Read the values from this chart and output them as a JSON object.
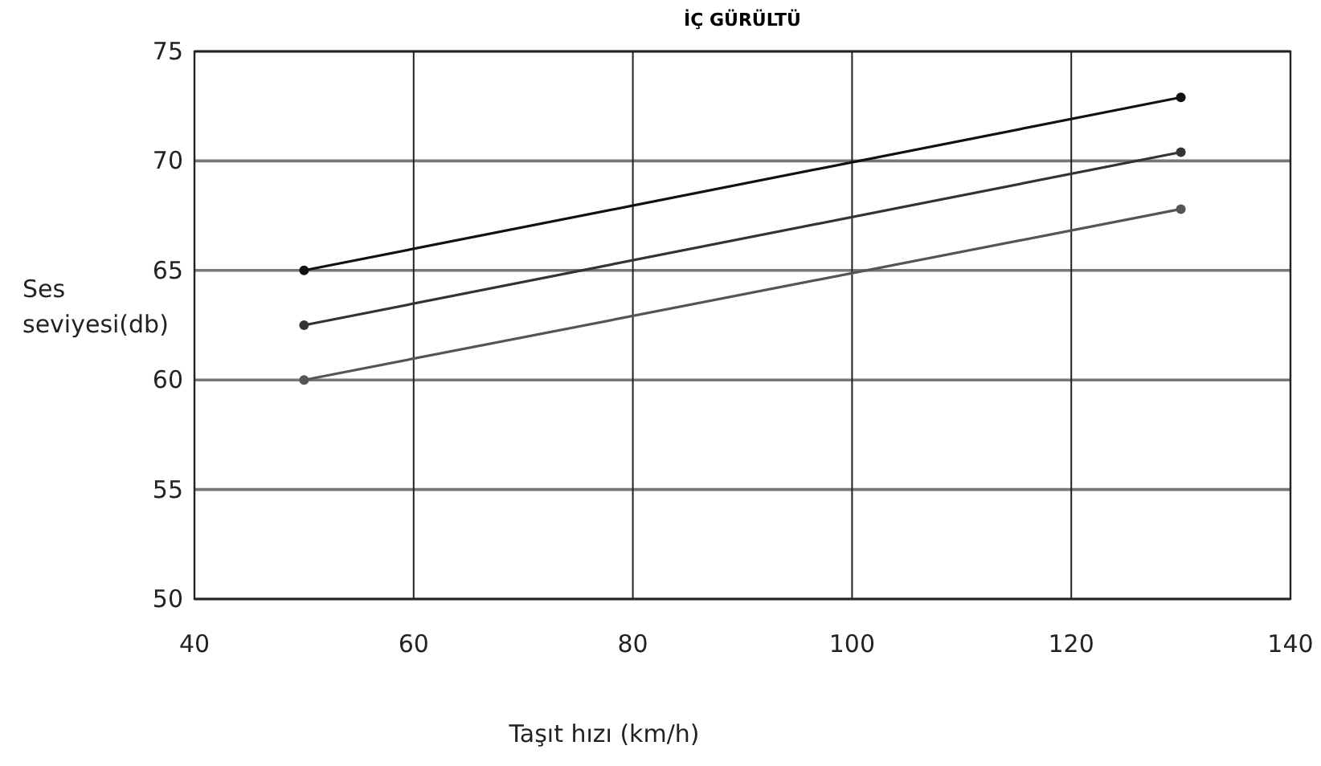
{
  "chart_data": {
    "type": "line",
    "title": "İÇ GÜRÜLTÜ",
    "xlabel": "Taşıt hızı (km/h)",
    "ylabel": "Ses\nseviyesi(db)",
    "x": [
      50,
      130
    ],
    "series": [
      {
        "color": "#111111",
        "values": [
          65,
          72.9
        ]
      },
      {
        "color": "#333333",
        "values": [
          62.5,
          70.4
        ]
      },
      {
        "color": "#555555",
        "values": [
          60,
          67.8
        ]
      }
    ],
    "xlim": [
      40,
      140
    ],
    "xticks": [
      40,
      60,
      80,
      100,
      120,
      140
    ],
    "ylim": [
      50,
      75
    ],
    "yticks": [
      50,
      55,
      60,
      65,
      70,
      75
    ],
    "grid": true,
    "marker": "circle",
    "line_style": "solid"
  }
}
